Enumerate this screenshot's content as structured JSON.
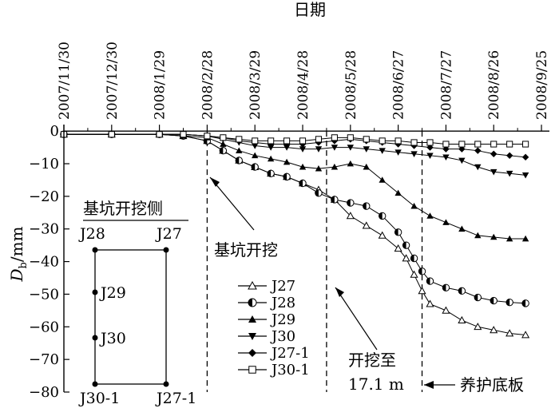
{
  "chart_data": {
    "type": "line",
    "x_title": "日期",
    "y_title_main": "D",
    "y_title_sub": "b",
    "y_title_unit": "/mm",
    "x_ticks": [
      "2007/11/30",
      "2007/12/30",
      "2008/1/29",
      "2008/2/28",
      "2008/3/29",
      "2008/4/28",
      "2008/5/28",
      "2008/6/27",
      "2008/7/27",
      "2008/8/26",
      "2008/9/25"
    ],
    "x_days": [
      0,
      30,
      60,
      90,
      120,
      150,
      180,
      210,
      240,
      270,
      300
    ],
    "xlim": [
      0,
      305
    ],
    "y_ticks": [
      0,
      -10,
      -20,
      -30,
      -40,
      -50,
      -60,
      -70,
      -80
    ],
    "ylim": [
      -80,
      2
    ],
    "events": [
      {
        "label": "基坑开挖",
        "day": 90
      },
      {
        "label": "开挖至",
        "label2": "17.1 m",
        "day": 165
      },
      {
        "label": "养护底板",
        "day": 225
      }
    ],
    "series": [
      {
        "name": "J27",
        "marker": "triangle-up-open",
        "x": [
          0,
          30,
          60,
          75,
          90,
          100,
          110,
          120,
          130,
          140,
          150,
          160,
          170,
          180,
          190,
          200,
          210,
          215,
          220,
          225,
          230,
          240,
          250,
          260,
          270,
          280,
          290
        ],
        "y": [
          -1,
          -1,
          -1,
          -1.5,
          -3,
          -6,
          -9,
          -11,
          -13,
          -14,
          -16,
          -18,
          -21,
          -26,
          -29,
          -32,
          -36,
          -39,
          -44,
          -49,
          -53,
          -55,
          -58,
          -60,
          -61,
          -62,
          -62.5
        ]
      },
      {
        "name": "J28",
        "marker": "circle-half",
        "x": [
          0,
          30,
          60,
          75,
          90,
          100,
          110,
          120,
          130,
          140,
          150,
          160,
          170,
          180,
          190,
          200,
          210,
          215,
          220,
          225,
          230,
          240,
          250,
          260,
          270,
          280,
          290
        ],
        "y": [
          -1,
          -1,
          -1,
          -1.5,
          -3,
          -6,
          -9,
          -11,
          -13,
          -14,
          -16,
          -19,
          -21,
          -22,
          -23,
          -26,
          -31,
          -35,
          -39,
          -43,
          -46,
          -48,
          -49,
          -51,
          -52,
          -52.5,
          -52.8
        ]
      },
      {
        "name": "J29",
        "marker": "triangle-up-filled",
        "x": [
          0,
          30,
          60,
          75,
          90,
          100,
          110,
          120,
          130,
          140,
          150,
          160,
          170,
          180,
          190,
          200,
          210,
          220,
          230,
          240,
          250,
          260,
          270,
          280,
          290
        ],
        "y": [
          -1,
          -1,
          -1,
          -1.5,
          -2,
          -4,
          -6,
          -7.5,
          -8.5,
          -9.5,
          -11,
          -11.5,
          -11,
          -10,
          -11,
          -15,
          -19,
          -23,
          -26,
          -28,
          -30,
          -32,
          -32.5,
          -33,
          -33
        ]
      },
      {
        "name": "J30",
        "marker": "triangle-down-filled",
        "x": [
          0,
          30,
          60,
          75,
          90,
          100,
          110,
          120,
          130,
          140,
          150,
          160,
          170,
          180,
          190,
          200,
          210,
          220,
          230,
          240,
          250,
          260,
          270,
          280,
          290
        ],
        "y": [
          -1,
          -1,
          -1,
          -1,
          -1.5,
          -2.5,
          -3.5,
          -4.5,
          -5,
          -5,
          -5.5,
          -5.5,
          -5,
          -5,
          -5.5,
          -6,
          -6.5,
          -7,
          -7.5,
          -8,
          -9,
          -11,
          -12.5,
          -13,
          -13.5
        ]
      },
      {
        "name": "J27-1",
        "marker": "diamond-filled",
        "x": [
          0,
          30,
          60,
          75,
          90,
          100,
          110,
          120,
          130,
          140,
          150,
          160,
          170,
          180,
          190,
          200,
          210,
          220,
          230,
          240,
          250,
          260,
          270,
          280,
          290
        ],
        "y": [
          -1,
          -1,
          -1,
          -1,
          -1.5,
          -2,
          -3,
          -3.5,
          -4,
          -4,
          -4,
          -3.5,
          -3,
          -2.5,
          -3,
          -3.5,
          -4,
          -4.5,
          -5,
          -5.5,
          -5.5,
          -6,
          -7,
          -7.5,
          -8
        ]
      },
      {
        "name": "J30-1",
        "marker": "square-open",
        "x": [
          0,
          30,
          60,
          75,
          90,
          100,
          110,
          120,
          130,
          140,
          150,
          160,
          170,
          180,
          190,
          200,
          210,
          220,
          230,
          240,
          250,
          260,
          270,
          280,
          290
        ],
        "y": [
          -1,
          -1,
          -1,
          -1,
          -1.5,
          -2,
          -2.5,
          -3,
          -3,
          -3,
          -3,
          -2.5,
          -2,
          -2,
          -2.5,
          -3,
          -3,
          -3.5,
          -3.5,
          -4,
          -4,
          -4,
          -4,
          -4,
          -4
        ]
      }
    ],
    "inset": {
      "title": "基坑开挖侧",
      "labels": [
        "J28",
        "J27",
        "J29",
        "J30",
        "J30-1",
        "J27-1"
      ]
    }
  }
}
